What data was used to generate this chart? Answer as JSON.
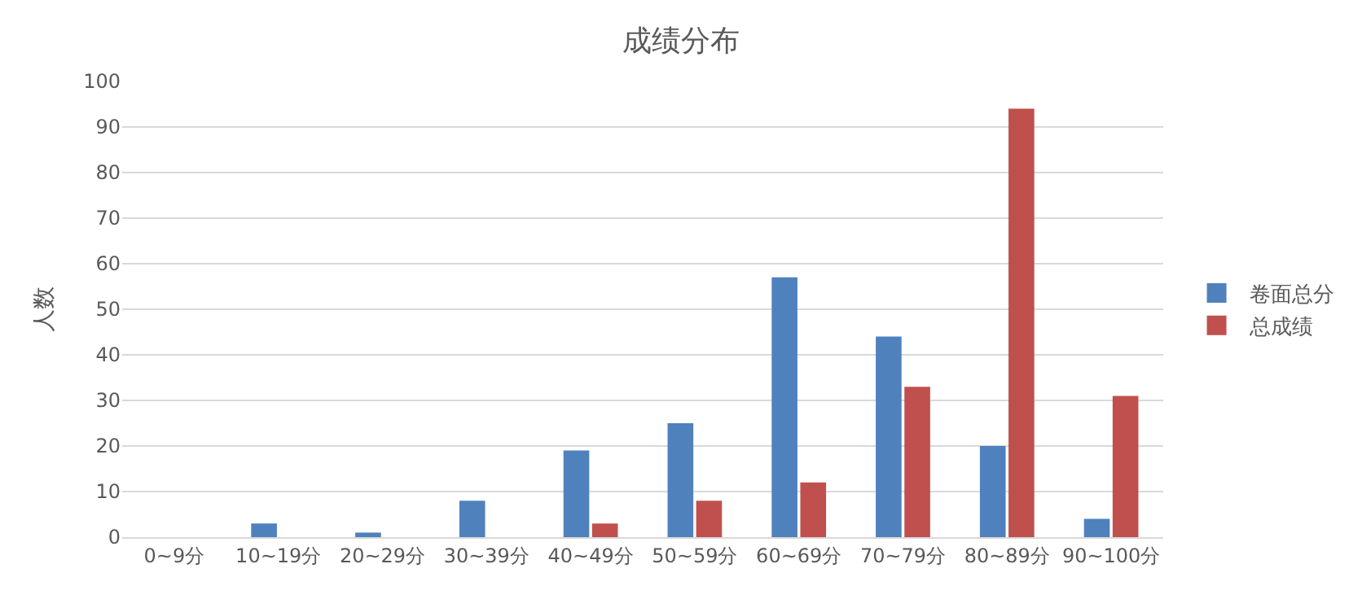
{
  "chart_data": {
    "type": "bar",
    "title": "成绩分布",
    "ylabel": "人数",
    "categories": [
      "0~9分",
      "10~19分",
      "20~29分",
      "30~39分",
      "40~49分",
      "50~59分",
      "60~69分",
      "70~79分",
      "80~89分",
      "90~100分"
    ],
    "series": [
      {
        "name": "卷面总分",
        "color": "#4f81bd",
        "values": [
          0,
          3,
          1,
          8,
          19,
          25,
          57,
          44,
          20,
          4
        ]
      },
      {
        "name": "总成绩",
        "color": "#c0504d",
        "values": [
          0,
          0,
          0,
          0,
          3,
          8,
          12,
          33,
          94,
          31
        ]
      }
    ],
    "ylim": [
      0,
      100
    ],
    "yticks": [
      0,
      10,
      20,
      30,
      40,
      50,
      60,
      70,
      80,
      90,
      100
    ],
    "grid": "y",
    "legend": "right"
  }
}
